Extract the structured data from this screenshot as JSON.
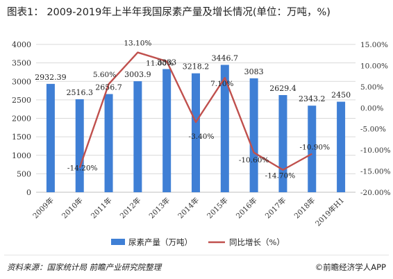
{
  "title": "图表1：  2009-2019年上半年我国尿素产量及增长情况(单位：万吨，%)",
  "source": "资料来源：国家统计局 前瞻产业研究院整理",
  "brand": "前瞻经济学人APP",
  "colors": {
    "bar": "#3f7fd5",
    "line": "#c0504d",
    "grid": "#d9d9d9",
    "axis": "#555555"
  },
  "chart_data": {
    "type": "bar",
    "categories": [
      "2009年",
      "2010年",
      "2011年",
      "2012年",
      "2013年",
      "2014年",
      "2015年",
      "2016年",
      "2017年",
      "2018年",
      "2019年H1"
    ],
    "series": [
      {
        "name": "尿素产量（万吨）",
        "type": "bar",
        "axis": "left",
        "values": [
          2932.39,
          2516.3,
          2656.7,
          3003.9,
          3333,
          3218.2,
          3446.7,
          3083,
          2629.4,
          2343.2,
          2450
        ],
        "labels": [
          "2932.39",
          "2516.3",
          "2656.7",
          "3003.9",
          "3333",
          "3218.2",
          "3446.7",
          "3083",
          "2629.4",
          "2343.2",
          "2450"
        ]
      },
      {
        "name": "同比增长（%）",
        "type": "line",
        "axis": "right",
        "values": [
          null,
          -14.2,
          5.6,
          13.1,
          11.0,
          -3.4,
          7.1,
          -10.6,
          -14.7,
          -10.9,
          null
        ],
        "labels": [
          "",
          "-14.20%",
          "5.60%",
          "13.10%",
          "11.00%",
          "-3.40%",
          "7.10%",
          "-10.60%",
          "-14.70%",
          "-10.90%",
          ""
        ]
      }
    ],
    "y_left": {
      "min": 0,
      "max": 4000,
      "ticks": [
        0,
        500,
        1000,
        1500,
        2000,
        2500,
        3000,
        3500,
        4000
      ]
    },
    "y_right": {
      "min": -20,
      "max": 15,
      "ticks": [
        -20,
        -15,
        -10,
        -5,
        0,
        5,
        10,
        15
      ],
      "tick_labels": [
        "-20.00%",
        "-15.00%",
        "-10.00%",
        "-5.00%",
        "0.00%",
        "5.00%",
        "10.00%",
        "15.00%"
      ]
    },
    "grid": true,
    "legend_position": "bottom"
  }
}
